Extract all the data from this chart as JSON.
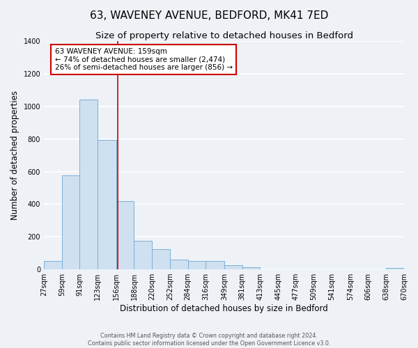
{
  "title": "63, WAVENEY AVENUE, BEDFORD, MK41 7ED",
  "subtitle": "Size of property relative to detached houses in Bedford",
  "xlabel": "Distribution of detached houses by size in Bedford",
  "ylabel": "Number of detached properties",
  "bin_edges": [
    27,
    59,
    91,
    123,
    156,
    188,
    220,
    252,
    284,
    316,
    349,
    381,
    413,
    445,
    477,
    509,
    541,
    574,
    606,
    638,
    670
  ],
  "bar_heights": [
    50,
    575,
    1040,
    795,
    420,
    175,
    125,
    60,
    50,
    50,
    25,
    15,
    0,
    0,
    0,
    0,
    0,
    0,
    0,
    10
  ],
  "bar_color": "#cfe0f0",
  "bar_edge_color": "#7aafd4",
  "property_size": 159,
  "vline_color": "#cc0000",
  "annotation_line1": "63 WAVENEY AVENUE: 159sqm",
  "annotation_line2": "← 74% of detached houses are smaller (2,474)",
  "annotation_line3": "26% of semi-detached houses are larger (856) →",
  "annotation_box_color": "#ffffff",
  "annotation_box_edge_color": "#cc0000",
  "ylim": [
    0,
    1400
  ],
  "yticks": [
    0,
    200,
    400,
    600,
    800,
    1000,
    1200,
    1400
  ],
  "footer_line1": "Contains HM Land Registry data © Crown copyright and database right 2024.",
  "footer_line2": "Contains public sector information licensed under the Open Government Licence v3.0.",
  "bg_color": "#eef2f7",
  "plot_bg_color": "#eef2f7",
  "grid_color": "#ffffff",
  "title_fontsize": 11,
  "subtitle_fontsize": 9.5,
  "label_fontsize": 8.5,
  "tick_fontsize": 7,
  "annotation_fontsize": 7.5,
  "footer_fontsize": 5.8
}
